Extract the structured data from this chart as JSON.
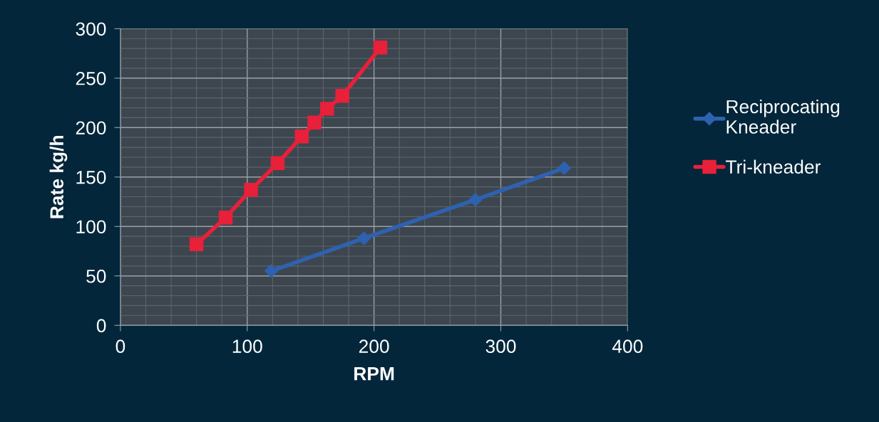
{
  "chart_data": {
    "type": "line",
    "xlabel": "RPM",
    "ylabel": "Rate kg/h",
    "xlim": [
      0,
      400
    ],
    "xticks": [
      0,
      100,
      200,
      300,
      400
    ],
    "ylim": [
      0,
      300
    ],
    "yticks": [
      0,
      50,
      100,
      150,
      200,
      250,
      300
    ],
    "grid": true,
    "legend": "right",
    "line_style": "solid",
    "series": [
      {
        "name": "Reciprocating\nKneader",
        "color": "#2e62b0",
        "marker": "diamond",
        "x": [
          119,
          192,
          280,
          350
        ],
        "values": [
          55,
          88,
          127,
          159
        ]
      },
      {
        "name": "Tri-kneader",
        "color": "#e8203a",
        "marker": "square",
        "x": [
          60,
          83,
          103,
          124,
          143,
          153,
          163,
          175,
          205
        ],
        "values": [
          82,
          109,
          137,
          164,
          191,
          205,
          219,
          232,
          281
        ]
      }
    ]
  }
}
